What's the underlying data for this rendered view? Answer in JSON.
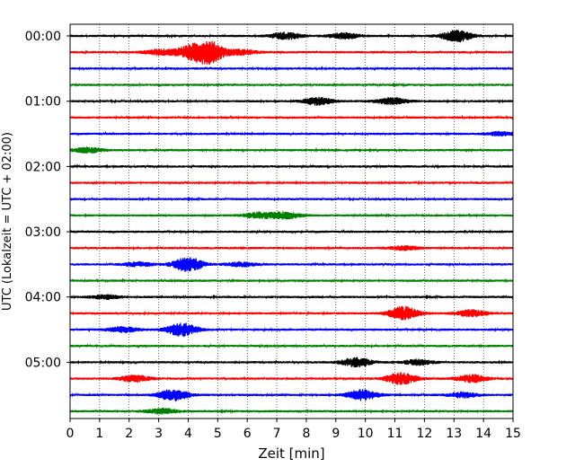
{
  "chart_data": {
    "type": "line",
    "title": "",
    "xlabel": "Zeit  [min]",
    "ylabel": "UTC (Lokalzeit = UTC + 02:00)",
    "xlim": [
      0,
      15
    ],
    "x_ticks": [
      0,
      1,
      2,
      3,
      4,
      5,
      6,
      7,
      8,
      9,
      10,
      11,
      12,
      13,
      14,
      15
    ],
    "x_tick_labels": [
      "0",
      "1",
      "2",
      "3",
      "4",
      "5",
      "6",
      "7",
      "8",
      "9",
      "10",
      "11",
      "12",
      "13",
      "14",
      "15"
    ],
    "y_tick_labels": [
      "00:00",
      "01:00",
      "02:00",
      "03:00",
      "04:00",
      "05:00"
    ],
    "y_tick_rows": [
      0,
      4,
      8,
      12,
      16,
      20
    ],
    "vertical_grid": true,
    "grid_style": "dotted",
    "color_cycle": [
      "#000000",
      "#ff0000",
      "#0000ff",
      "#008000"
    ],
    "trace_minutes": 15,
    "rows": [
      {
        "start": "00:00",
        "color": "#000000",
        "events": [
          {
            "t": 7.3,
            "amp": 0.28
          },
          {
            "t": 9.3,
            "amp": 0.22
          },
          {
            "t": 13.1,
            "amp": 0.45
          }
        ]
      },
      {
        "start": "00:15",
        "color": "#ff0000",
        "events": [
          {
            "t": 3.0,
            "amp": 0.2
          },
          {
            "t": 4.0,
            "amp": 0.45
          },
          {
            "t": 4.7,
            "amp": 0.85
          },
          {
            "t": 5.8,
            "amp": 0.2
          }
        ]
      },
      {
        "start": "00:30",
        "color": "#0000ff",
        "events": []
      },
      {
        "start": "00:45",
        "color": "#008000",
        "events": []
      },
      {
        "start": "01:00",
        "color": "#000000",
        "events": [
          {
            "t": 8.4,
            "amp": 0.28
          },
          {
            "t": 10.9,
            "amp": 0.25
          }
        ]
      },
      {
        "start": "01:15",
        "color": "#ff0000",
        "events": []
      },
      {
        "start": "01:30",
        "color": "#0000ff",
        "events": [
          {
            "t": 14.6,
            "amp": 0.15
          }
        ]
      },
      {
        "start": "01:45",
        "color": "#008000",
        "events": [
          {
            "t": 0.6,
            "amp": 0.2
          }
        ]
      },
      {
        "start": "02:00",
        "color": "#000000",
        "events": []
      },
      {
        "start": "02:15",
        "color": "#ff0000",
        "events": []
      },
      {
        "start": "02:30",
        "color": "#0000ff",
        "events": []
      },
      {
        "start": "02:45",
        "color": "#008000",
        "events": [
          {
            "t": 6.4,
            "amp": 0.22
          },
          {
            "t": 7.3,
            "amp": 0.25
          }
        ]
      },
      {
        "start": "03:00",
        "color": "#000000",
        "events": []
      },
      {
        "start": "03:15",
        "color": "#ff0000",
        "events": [
          {
            "t": 11.3,
            "amp": 0.15
          }
        ]
      },
      {
        "start": "03:30",
        "color": "#0000ff",
        "events": [
          {
            "t": 2.3,
            "amp": 0.15
          },
          {
            "t": 4.0,
            "amp": 0.55
          },
          {
            "t": 5.8,
            "amp": 0.15
          }
        ]
      },
      {
        "start": "03:45",
        "color": "#008000",
        "events": []
      },
      {
        "start": "04:00",
        "color": "#000000",
        "events": [
          {
            "t": 1.2,
            "amp": 0.15
          }
        ]
      },
      {
        "start": "04:15",
        "color": "#ff0000",
        "events": [
          {
            "t": 11.3,
            "amp": 0.5
          },
          {
            "t": 13.6,
            "amp": 0.25
          }
        ]
      },
      {
        "start": "04:30",
        "color": "#0000ff",
        "events": [
          {
            "t": 1.8,
            "amp": 0.2
          },
          {
            "t": 3.8,
            "amp": 0.5
          }
        ]
      },
      {
        "start": "04:45",
        "color": "#008000",
        "events": []
      },
      {
        "start": "05:00",
        "color": "#000000",
        "events": [
          {
            "t": 9.7,
            "amp": 0.35
          },
          {
            "t": 11.8,
            "amp": 0.2
          }
        ]
      },
      {
        "start": "05:15",
        "color": "#ff0000",
        "events": [
          {
            "t": 2.2,
            "amp": 0.25
          },
          {
            "t": 11.2,
            "amp": 0.45
          },
          {
            "t": 13.6,
            "amp": 0.3
          }
        ]
      },
      {
        "start": "05:30",
        "color": "#0000ff",
        "events": [
          {
            "t": 3.5,
            "amp": 0.45
          },
          {
            "t": 9.9,
            "amp": 0.4
          },
          {
            "t": 13.3,
            "amp": 0.2
          }
        ]
      },
      {
        "start": "05:45",
        "color": "#008000",
        "events": [
          {
            "t": 3.1,
            "amp": 0.2
          }
        ]
      }
    ]
  }
}
